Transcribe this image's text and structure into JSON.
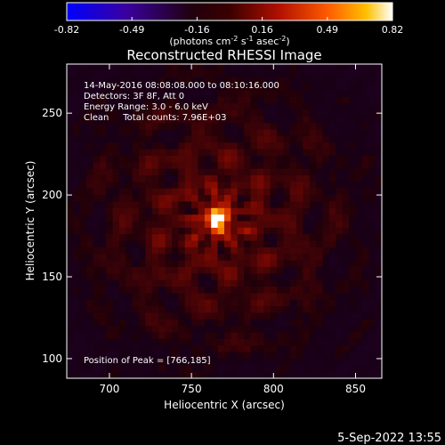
{
  "chart_data": {
    "type": "heatmap",
    "title": "Reconstructed RHESSI Image",
    "xlabel": "Heliocentric X (arcsec)",
    "ylabel": "Heliocentric Y (arcsec)",
    "xlim": [
      674,
      866
    ],
    "ylim": [
      88,
      280
    ],
    "x_ticks": [
      700,
      750,
      800,
      850
    ],
    "y_ticks": [
      100,
      150,
      200,
      250
    ],
    "colorbar": {
      "range": [
        -0.82,
        0.82
      ],
      "ticks": [
        "-0.82",
        "-0.49",
        "-0.16",
        "0.16",
        "0.49",
        "0.82"
      ],
      "unit_prefix": "(photons cm",
      "unit_sup1": "-2",
      "unit_mid": " s",
      "unit_sup2": "-1",
      "unit_mid2": " asec",
      "unit_sup3": "-2",
      "unit_suffix": ")",
      "colormap": [
        "#0000ff",
        "#4b0082",
        "#000000",
        "#8b0000",
        "#ff4500",
        "#ffd700",
        "#ffffff"
      ]
    },
    "peak": {
      "x": 766,
      "y": 185,
      "value": 0.82
    },
    "annotations": [
      "14-May-2016 08:08:08.000 to 08:10:16.000",
      "Detectors: 3F 8F, Att 0",
      "Energy Range: 3.0 - 6.0 keV",
      "Clean     Total counts: 7.96E+03"
    ],
    "peak_label": "Position of Peak = [766,185]"
  },
  "footer": {
    "timestamp": "5-Sep-2022 13:55"
  }
}
